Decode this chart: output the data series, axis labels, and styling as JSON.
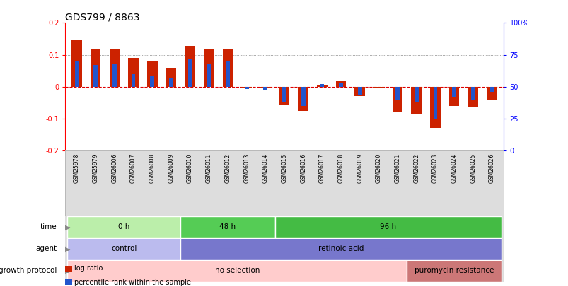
{
  "title": "GDS799 / 8863",
  "samples": [
    "GSM25978",
    "GSM25979",
    "GSM26006",
    "GSM26007",
    "GSM26008",
    "GSM26009",
    "GSM26010",
    "GSM26011",
    "GSM26012",
    "GSM26013",
    "GSM26014",
    "GSM26015",
    "GSM26016",
    "GSM26017",
    "GSM26018",
    "GSM26019",
    "GSM26020",
    "GSM26021",
    "GSM26022",
    "GSM26023",
    "GSM26024",
    "GSM26025",
    "GSM26026"
  ],
  "log_ratio": [
    0.147,
    0.118,
    0.118,
    0.09,
    0.082,
    0.06,
    0.128,
    0.118,
    0.118,
    -0.005,
    -0.005,
    -0.058,
    -0.075,
    0.005,
    0.02,
    -0.03,
    -0.005,
    -0.08,
    -0.085,
    -0.128,
    -0.06,
    -0.065,
    -0.04
  ],
  "percentile_rank": [
    70,
    67,
    68,
    60,
    58,
    57,
    72,
    68,
    70,
    48,
    47,
    38,
    35,
    52,
    53,
    44,
    50,
    40,
    38,
    25,
    42,
    40,
    46
  ],
  "ylim_left": [
    -0.2,
    0.2
  ],
  "ylim_right": [
    0,
    100
  ],
  "yticks_left": [
    -0.2,
    -0.1,
    0.0,
    0.1,
    0.2
  ],
  "ytick_labels_left": [
    "-0.2",
    "-0.1",
    "0",
    "0.1",
    "0.2"
  ],
  "yticks_right": [
    0,
    25,
    50,
    75,
    100
  ],
  "ytick_labels_right": [
    "0",
    "25",
    "50",
    "75",
    "100%"
  ],
  "bar_color_red": "#cc2200",
  "bar_color_blue": "#2255cc",
  "zero_line_color": "#dd0000",
  "dotted_line_color": "#555555",
  "bg_color": "#ffffff",
  "sample_bg_color": "#dddddd",
  "time_groups": [
    {
      "label": "0 h",
      "start": 0,
      "end": 6,
      "color": "#bbeeaa"
    },
    {
      "label": "48 h",
      "start": 6,
      "end": 11,
      "color": "#55cc55"
    },
    {
      "label": "96 h",
      "start": 11,
      "end": 23,
      "color": "#44bb44"
    }
  ],
  "agent_groups": [
    {
      "label": "control",
      "start": 0,
      "end": 6,
      "color": "#bbbbee"
    },
    {
      "label": "retinoic acid",
      "start": 6,
      "end": 23,
      "color": "#7777cc"
    }
  ],
  "growth_groups": [
    {
      "label": "no selection",
      "start": 0,
      "end": 18,
      "color": "#ffcccc"
    },
    {
      "label": "puromycin resistance",
      "start": 18,
      "end": 23,
      "color": "#cc7777"
    }
  ],
  "row_labels": [
    "time",
    "agent",
    "growth protocol"
  ],
  "legend": [
    {
      "label": "log ratio",
      "color": "#cc2200"
    },
    {
      "label": "percentile rank within the sample",
      "color": "#2255cc"
    }
  ]
}
